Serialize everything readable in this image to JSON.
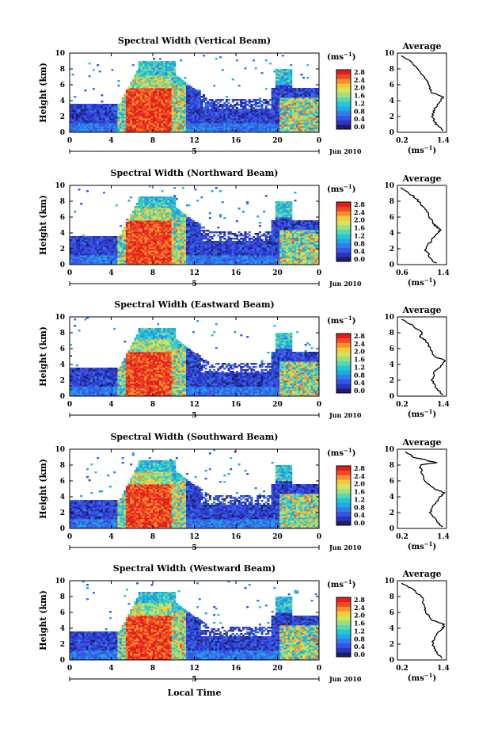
{
  "figure": {
    "xlabel": "Local Time",
    "date_label": "Jun 2010",
    "day_label": "5",
    "colorbar_unit_base": "(ms",
    "colorbar_unit_exp": "−1",
    "colorbar_unit_close": ")",
    "colorbar_ticks": [
      "2.8",
      "2.4",
      "2.0",
      "1.6",
      "1.2",
      "0.8",
      "0.4",
      "0.0"
    ],
    "colors": [
      "#1c1f6b",
      "#2b35c4",
      "#3a55e6",
      "#2f7fe8",
      "#1fa8e6",
      "#22c8d2",
      "#5ad6b0",
      "#9ee07c",
      "#d8e25a",
      "#f6c93a",
      "#f7902c",
      "#ef4a24",
      "#e01e1e"
    ]
  },
  "chart_data": [
    {
      "type": "heatmap",
      "title": "Spectral Width (Vertical Beam)",
      "xlabel": "Local Time",
      "ylabel": "Height (km)",
      "x_ticks": [
        "0",
        "4",
        "8",
        "12",
        "16",
        "20",
        "0"
      ],
      "y_ticks": [
        "0",
        "2",
        "4",
        "6",
        "8",
        "10"
      ],
      "xlim": [
        0,
        24
      ],
      "ylim": [
        0,
        10
      ],
      "clim": [
        0.0,
        3.0
      ],
      "profile": {
        "title": "Average",
        "xlabel_base": "(ms",
        "xlabel_exp": "−1",
        "xlabel_close": ")",
        "x_ticks": [
          "0.2",
          "1.4"
        ],
        "xlim": [
          0.2,
          1.4
        ],
        "y_ticks": [
          "0",
          "2",
          "4",
          "6",
          "8",
          "10"
        ],
        "heights": [
          0.2,
          1,
          2,
          3,
          4,
          4.5,
          5,
          6,
          6.5,
          7,
          8,
          9,
          9.7
        ],
        "values": [
          1.32,
          1.15,
          1.05,
          1.12,
          1.25,
          1.32,
          1.05,
          0.95,
          0.92,
          0.85,
          0.7,
          0.5,
          0.3
        ]
      }
    },
    {
      "type": "heatmap",
      "title": "Spectral Width (Northward Beam)",
      "xlabel": "Local Time",
      "ylabel": "Height (km)",
      "x_ticks": [
        "0",
        "4",
        "8",
        "12",
        "16",
        "20",
        "0"
      ],
      "y_ticks": [
        "0",
        "2",
        "4",
        "6",
        "8",
        "10"
      ],
      "xlim": [
        0,
        24
      ],
      "ylim": [
        0,
        10
      ],
      "clim": [
        0.0,
        3.0
      ],
      "profile": {
        "title": "Average",
        "xlabel_base": "(ms",
        "xlabel_exp": "−1",
        "xlabel_close": ")",
        "x_ticks": [
          "0.6",
          "1.4"
        ],
        "xlim": [
          0.6,
          1.4
        ],
        "y_ticks": [
          "0",
          "2",
          "4",
          "6",
          "8",
          "10"
        ],
        "heights": [
          0.2,
          1,
          2,
          3,
          4,
          4.5,
          5,
          6,
          7,
          8,
          9,
          9.7
        ],
        "values": [
          1.22,
          1.12,
          1.05,
          1.15,
          1.25,
          1.3,
          1.2,
          1.12,
          1.05,
          0.95,
          0.8,
          0.65
        ]
      }
    },
    {
      "type": "heatmap",
      "title": "Spectral Width (Eastward Beam)",
      "xlabel": "Local Time",
      "ylabel": "Height (km)",
      "x_ticks": [
        "0",
        "4",
        "8",
        "12",
        "16",
        "20",
        "0"
      ],
      "y_ticks": [
        "0",
        "2",
        "4",
        "6",
        "8",
        "10"
      ],
      "xlim": [
        0,
        24
      ],
      "ylim": [
        0,
        10
      ],
      "clim": [
        0.0,
        3.0
      ],
      "profile": {
        "title": "Average",
        "xlabel_base": "(ms",
        "xlabel_exp": "−1",
        "xlabel_close": ")",
        "x_ticks": [
          "0.2",
          "1.4"
        ],
        "xlim": [
          0.2,
          1.4
        ],
        "y_ticks": [
          "0",
          "2",
          "4",
          "6",
          "8",
          "10"
        ],
        "heights": [
          0.2,
          1,
          2,
          3,
          4,
          4.5,
          5,
          6,
          7,
          7.5,
          8,
          9,
          9.7
        ],
        "values": [
          1.3,
          1.15,
          1.05,
          1.1,
          1.3,
          1.38,
          1.1,
          1.0,
          0.9,
          0.75,
          0.8,
          0.55,
          0.3
        ]
      }
    },
    {
      "type": "heatmap",
      "title": "Spectral Width (Southward Beam)",
      "xlabel": "Local Time",
      "ylabel": "Height (km)",
      "x_ticks": [
        "0",
        "4",
        "8",
        "12",
        "16",
        "20",
        "0"
      ],
      "y_ticks": [
        "0",
        "2",
        "4",
        "6",
        "8",
        "10"
      ],
      "xlim": [
        0,
        24
      ],
      "ylim": [
        0,
        10
      ],
      "clim": [
        0.0,
        3.0
      ],
      "profile": {
        "title": "Average",
        "xlabel_base": "(ms",
        "xlabel_exp": "−1",
        "xlabel_close": ")",
        "x_ticks": [
          "0.2",
          "1.4"
        ],
        "xlim": [
          0.2,
          1.4
        ],
        "y_ticks": [
          "0",
          "2",
          "4",
          "6",
          "8",
          "10"
        ],
        "heights": [
          0.2,
          1,
          2,
          3,
          4,
          4.5,
          5,
          6,
          7,
          8,
          8.3,
          9,
          9.7
        ],
        "values": [
          1.28,
          1.15,
          1.0,
          1.1,
          1.25,
          1.35,
          1.1,
          0.85,
          0.8,
          0.75,
          1.15,
          0.6,
          0.4
        ]
      }
    },
    {
      "type": "heatmap",
      "title": "Spectral Width (Westward Beam)",
      "xlabel": "Local Time",
      "ylabel": "Height (km)",
      "x_ticks": [
        "0",
        "4",
        "8",
        "12",
        "16",
        "20",
        "0"
      ],
      "y_ticks": [
        "0",
        "2",
        "4",
        "6",
        "8",
        "10"
      ],
      "xlim": [
        0,
        24
      ],
      "ylim": [
        0,
        10
      ],
      "clim": [
        0.0,
        3.0
      ],
      "profile": {
        "title": "Average",
        "xlabel_base": "(ms",
        "xlabel_exp": "−1",
        "xlabel_close": ")",
        "x_ticks": [
          "0.2",
          "1.4"
        ],
        "xlim": [
          0.2,
          1.4
        ],
        "y_ticks": [
          "0",
          "2",
          "4",
          "6",
          "8",
          "10"
        ],
        "heights": [
          0.2,
          1,
          2,
          3,
          4,
          4.5,
          5,
          6,
          7,
          8,
          9,
          9.7
        ],
        "values": [
          1.3,
          1.15,
          1.05,
          1.12,
          1.3,
          1.35,
          1.05,
          0.9,
          0.85,
          0.8,
          0.55,
          0.3
        ]
      }
    }
  ]
}
